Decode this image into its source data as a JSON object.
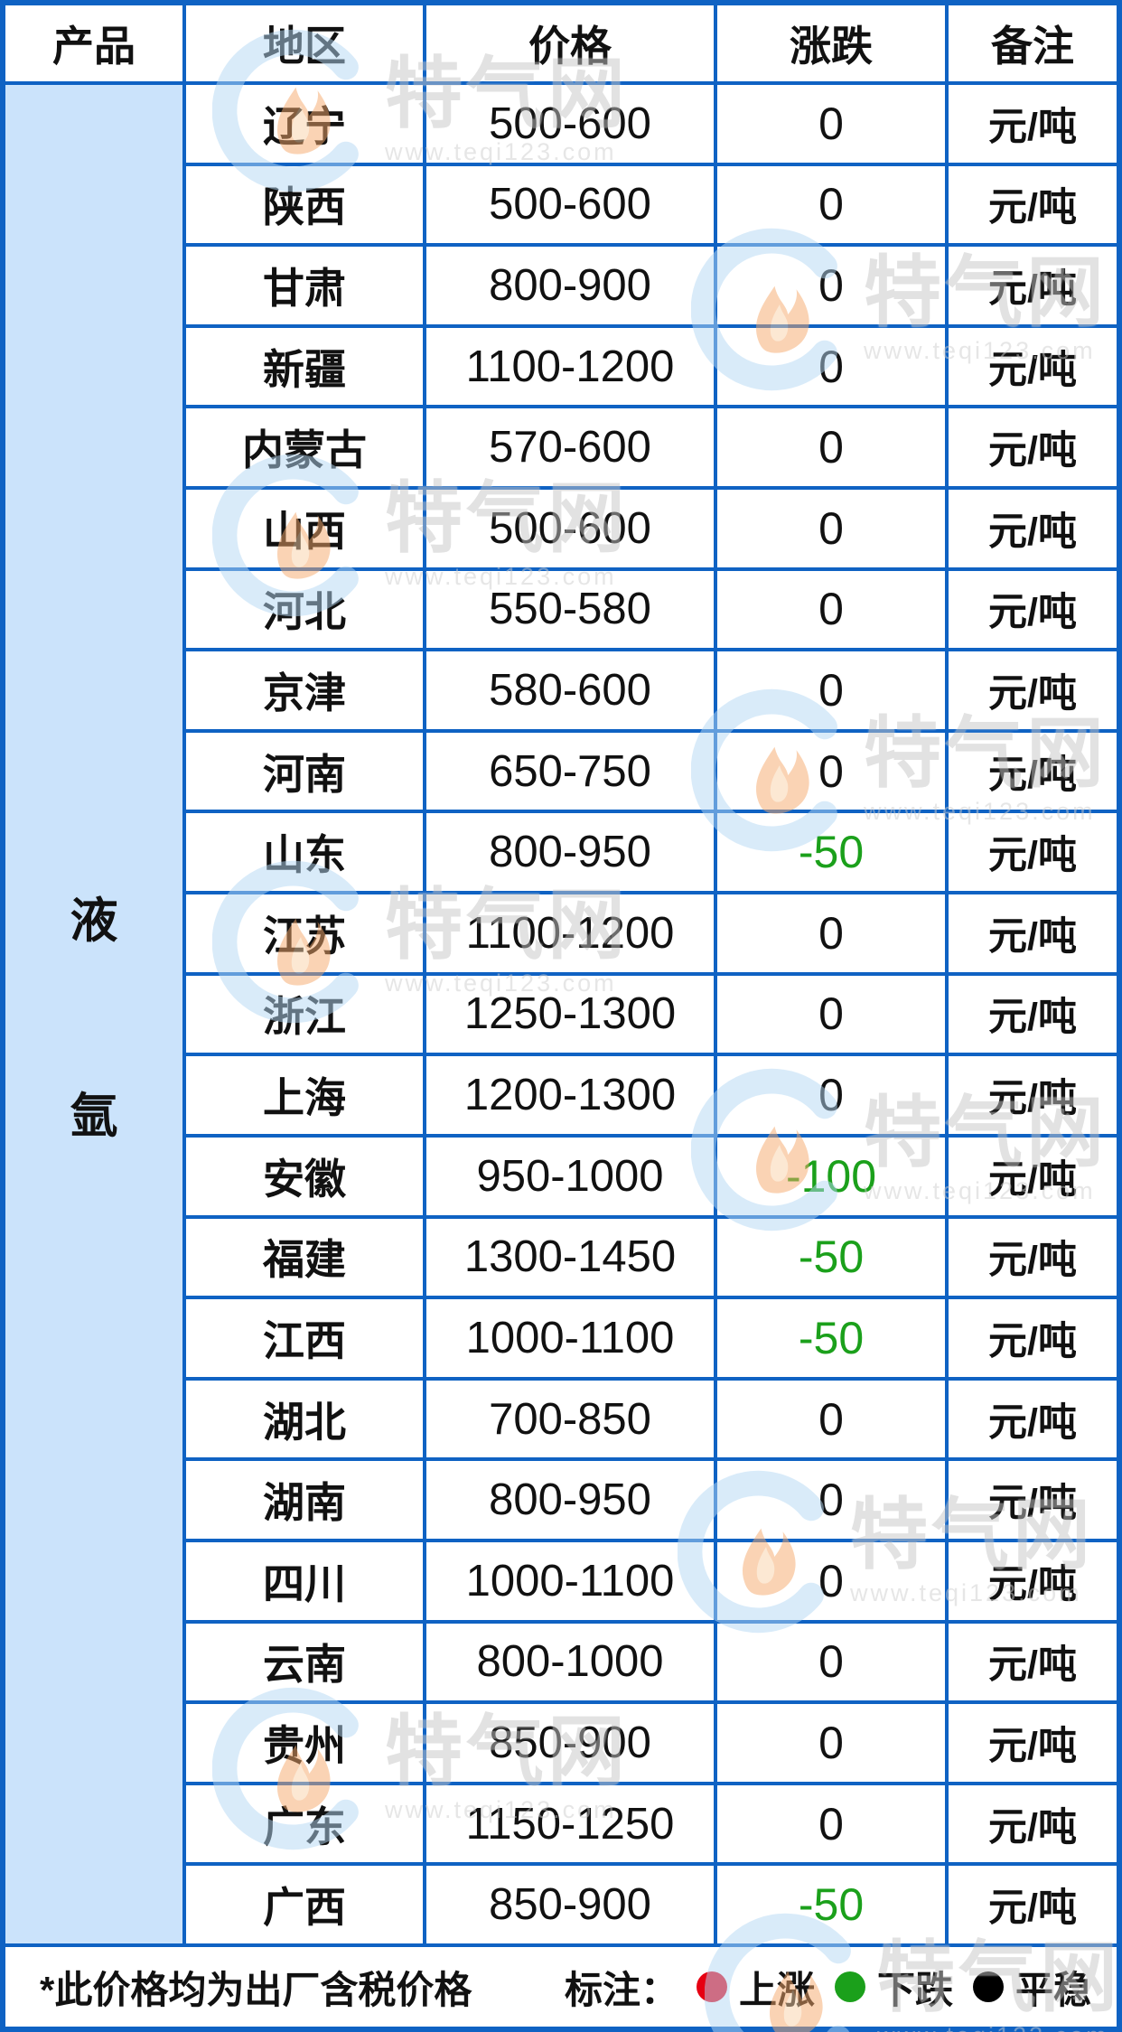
{
  "table": {
    "headers": {
      "product": "产品",
      "region": "地区",
      "price": "价格",
      "change": "涨跌",
      "note": "备注"
    },
    "product_label": "液氩",
    "rows": [
      {
        "region": "辽宁",
        "price": "500-600",
        "change": "0",
        "note": "元/吨"
      },
      {
        "region": "陕西",
        "price": "500-600",
        "change": "0",
        "note": "元/吨"
      },
      {
        "region": "甘肃",
        "price": "800-900",
        "change": "0",
        "note": "元/吨"
      },
      {
        "region": "新疆",
        "price": "1100-1200",
        "change": "0",
        "note": "元/吨"
      },
      {
        "region": "内蒙古",
        "price": "570-600",
        "change": "0",
        "note": "元/吨"
      },
      {
        "region": "山西",
        "price": "500-600",
        "change": "0",
        "note": "元/吨"
      },
      {
        "region": "河北",
        "price": "550-580",
        "change": "0",
        "note": "元/吨"
      },
      {
        "region": "京津",
        "price": "580-600",
        "change": "0",
        "note": "元/吨"
      },
      {
        "region": "河南",
        "price": "650-750",
        "change": "0",
        "note": "元/吨"
      },
      {
        "region": "山东",
        "price": "800-950",
        "change": "-50",
        "note": "元/吨"
      },
      {
        "region": "江苏",
        "price": "1100-1200",
        "change": "0",
        "note": "元/吨"
      },
      {
        "region": "浙江",
        "price": "1250-1300",
        "change": "0",
        "note": "元/吨"
      },
      {
        "region": "上海",
        "price": "1200-1300",
        "change": "0",
        "note": "元/吨"
      },
      {
        "region": "安徽",
        "price": "950-1000",
        "change": "-100",
        "note": "元/吨"
      },
      {
        "region": "福建",
        "price": "1300-1450",
        "change": "-50",
        "note": "元/吨"
      },
      {
        "region": "江西",
        "price": "1000-1100",
        "change": "-50",
        "note": "元/吨"
      },
      {
        "region": "湖北",
        "price": "700-850",
        "change": "0",
        "note": "元/吨"
      },
      {
        "region": "湖南",
        "price": "800-950",
        "change": "0",
        "note": "元/吨"
      },
      {
        "region": "四川",
        "price": "1000-1100",
        "change": "0",
        "note": "元/吨"
      },
      {
        "region": "云南",
        "price": "800-1000",
        "change": "0",
        "note": "元/吨"
      },
      {
        "region": "贵州",
        "price": "850-900",
        "change": "0",
        "note": "元/吨"
      },
      {
        "region": "广东",
        "price": "1150-1250",
        "change": "0",
        "note": "元/吨"
      },
      {
        "region": "广西",
        "price": "850-900",
        "change": "-50",
        "note": "元/吨"
      }
    ]
  },
  "footer": {
    "note": "*此价格均为出厂含税价格",
    "legend_label": "标注：",
    "legend": [
      {
        "label": "上涨",
        "color": "#e60012"
      },
      {
        "label": "下跌",
        "color": "#1ba01b"
      },
      {
        "label": "平稳",
        "color": "#000000"
      }
    ]
  },
  "watermark": {
    "brand": "特气网",
    "url": "www.teqi123.com"
  },
  "colors": {
    "grid_blue": "#0f62c3",
    "product_bg": "#cbe3fb",
    "down_green": "#1ba01b",
    "text": "#111111"
  }
}
